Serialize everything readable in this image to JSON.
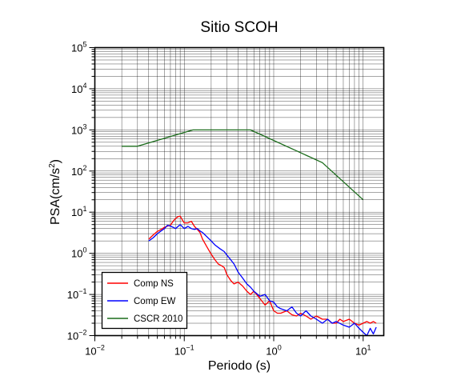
{
  "chart_data": {
    "type": "line",
    "title": "Sitio SCOH",
    "xlabel": "Periodo (s)",
    "ylabel_base": "PSA(cm/s",
    "ylabel_sup": "2",
    "ylabel_end": ")",
    "x_scale": "log",
    "y_scale": "log",
    "xlim": [
      0.01,
      17
    ],
    "ylim": [
      0.01,
      100000
    ],
    "grid": true,
    "legend_position": "bottom-left",
    "x_ticks": [
      {
        "value": 0.01,
        "base": "10",
        "exp": "−2"
      },
      {
        "value": 0.1,
        "base": "10",
        "exp": "−1"
      },
      {
        "value": 1,
        "base": "10",
        "exp": "0"
      },
      {
        "value": 10,
        "base": "10",
        "exp": "1"
      }
    ],
    "y_ticks": [
      {
        "value": 0.01,
        "base": "10",
        "exp": "−2"
      },
      {
        "value": 0.1,
        "base": "10",
        "exp": "−1"
      },
      {
        "value": 1,
        "base": "10",
        "exp": "0"
      },
      {
        "value": 10,
        "base": "10",
        "exp": "1"
      },
      {
        "value": 100,
        "base": "10",
        "exp": "2"
      },
      {
        "value": 1000,
        "base": "10",
        "exp": "3"
      },
      {
        "value": 10000,
        "base": "10",
        "exp": "4"
      },
      {
        "value": 100000,
        "base": "10",
        "exp": "5"
      }
    ],
    "series": [
      {
        "name": "Comp NS",
        "color": "#ff0000",
        "x": [
          0.04,
          0.045,
          0.05,
          0.055,
          0.06,
          0.065,
          0.07,
          0.075,
          0.08,
          0.085,
          0.09,
          0.095,
          0.1,
          0.11,
          0.12,
          0.13,
          0.14,
          0.15,
          0.16,
          0.18,
          0.2,
          0.22,
          0.24,
          0.26,
          0.28,
          0.3,
          0.33,
          0.36,
          0.4,
          0.45,
          0.5,
          0.55,
          0.6,
          0.7,
          0.8,
          0.9,
          1.0,
          1.1,
          1.2,
          1.4,
          1.6,
          1.8,
          2.0,
          2.3,
          2.6,
          3.0,
          3.5,
          4.0,
          4.5,
          5.0,
          5.5,
          6.0,
          7.0,
          8.0,
          9.0,
          10.0,
          11.0,
          12.0,
          13.0,
          14.0
        ],
        "y": [
          2.2,
          2.8,
          3.4,
          3.8,
          4.3,
          4.6,
          4.8,
          6.0,
          7.0,
          7.8,
          8.0,
          6.5,
          5.5,
          5.5,
          6.0,
          4.5,
          3.8,
          3.2,
          2.2,
          1.4,
          0.95,
          0.7,
          0.55,
          0.5,
          0.45,
          0.3,
          0.22,
          0.18,
          0.2,
          0.16,
          0.12,
          0.1,
          0.12,
          0.08,
          0.055,
          0.07,
          0.04,
          0.035,
          0.035,
          0.04,
          0.032,
          0.03,
          0.035,
          0.03,
          0.025,
          0.03,
          0.025,
          0.025,
          0.02,
          0.02,
          0.025,
          0.022,
          0.025,
          0.02,
          0.018,
          0.02,
          0.022,
          0.02,
          0.022,
          0.02
        ]
      },
      {
        "name": "Comp EW",
        "color": "#0000ff",
        "x": [
          0.04,
          0.045,
          0.05,
          0.055,
          0.06,
          0.065,
          0.07,
          0.075,
          0.08,
          0.09,
          0.1,
          0.11,
          0.12,
          0.13,
          0.14,
          0.15,
          0.16,
          0.18,
          0.2,
          0.22,
          0.25,
          0.28,
          0.3,
          0.33,
          0.36,
          0.4,
          0.45,
          0.5,
          0.55,
          0.6,
          0.7,
          0.8,
          0.9,
          1.0,
          1.1,
          1.2,
          1.4,
          1.6,
          1.8,
          2.0,
          2.3,
          2.6,
          3.0,
          3.5,
          4.0,
          4.5,
          5.0,
          6.0,
          7.0,
          8.0,
          9.0,
          10.0,
          11.0,
          12.0,
          13.0,
          14.0
        ],
        "y": [
          2.0,
          2.4,
          3.0,
          3.5,
          4.0,
          4.8,
          4.6,
          4.3,
          4.0,
          5.0,
          4.0,
          4.5,
          4.0,
          3.8,
          4.0,
          3.5,
          3.2,
          2.5,
          2.0,
          1.6,
          1.3,
          1.1,
          0.9,
          0.7,
          0.55,
          0.35,
          0.25,
          0.18,
          0.15,
          0.12,
          0.09,
          0.1,
          0.07,
          0.065,
          0.05,
          0.045,
          0.04,
          0.05,
          0.035,
          0.03,
          0.04,
          0.03,
          0.025,
          0.02,
          0.025,
          0.02,
          0.022,
          0.018,
          0.016,
          0.02,
          0.015,
          0.012,
          0.01,
          0.015,
          0.011,
          0.016
        ]
      },
      {
        "name": "CSCR 2010",
        "color": "#1a6b1a",
        "x": [
          0.02,
          0.03,
          0.125,
          0.55,
          3.5,
          10.0
        ],
        "y": [
          400,
          400,
          1000,
          1000,
          160,
          20
        ]
      }
    ]
  }
}
